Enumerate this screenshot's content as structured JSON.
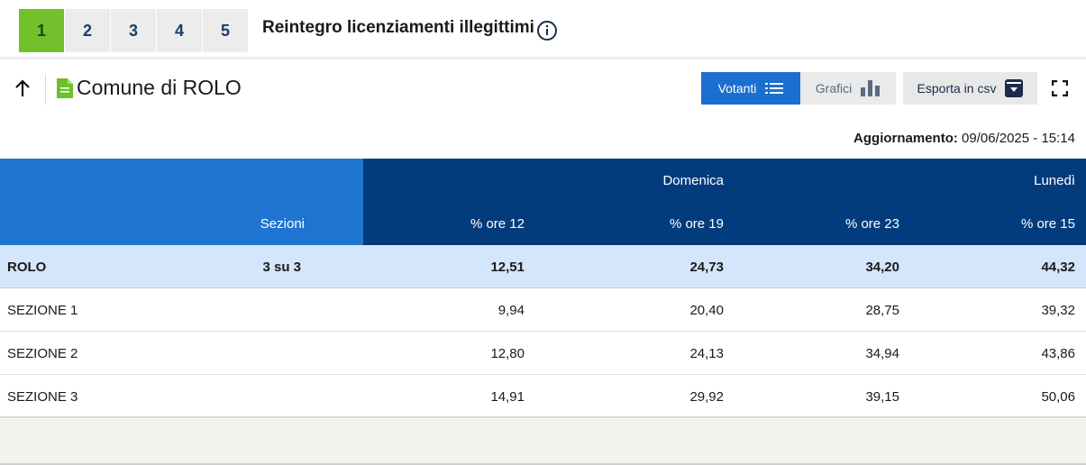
{
  "tabs": [
    "1",
    "2",
    "3",
    "4",
    "5"
  ],
  "active_tab": "1",
  "referendum_title": "Reintegro licenziamenti illegittimi",
  "header": {
    "comune_title": "Comune di ROLO",
    "votanti_label": "Votanti",
    "grafici_label": "Grafici",
    "csv_label": "Esporta in csv"
  },
  "update": {
    "label": "Aggiornamento:",
    "value": "09/06/2025 - 15:14"
  },
  "table": {
    "day_headers": {
      "domenica": "Domenica",
      "lunedi": "Lunedì"
    },
    "columns": {
      "sezioni": "Sezioni",
      "ore12": "% ore 12",
      "ore19": "% ore 19",
      "ore23": "% ore 23",
      "ore15": "% ore 15"
    },
    "total_row": {
      "name": "ROLO",
      "sezioni": "3 su 3",
      "ore12": "12,51",
      "ore19": "24,73",
      "ore23": "34,20",
      "ore15": "44,32"
    },
    "rows": [
      {
        "name": "SEZIONE 1",
        "ore12": "9,94",
        "ore19": "20,40",
        "ore23": "28,75",
        "ore15": "39,32"
      },
      {
        "name": "SEZIONE 2",
        "ore12": "12,80",
        "ore19": "24,13",
        "ore23": "34,94",
        "ore15": "43,86"
      },
      {
        "name": "SEZIONE 3",
        "ore12": "14,91",
        "ore19": "29,92",
        "ore23": "39,15",
        "ore15": "50,06"
      }
    ]
  },
  "colors": {
    "active_tab": "#72c02c",
    "primary_blue": "#1b6fd1",
    "table_header_dark": "#033c7d",
    "table_header_light": "#1f74d2",
    "total_row_bg": "#d4e6fb"
  },
  "icons": [
    "info-icon",
    "back-arrow-icon",
    "document-icon",
    "list-icon",
    "bar-chart-icon",
    "download-box-icon",
    "fullscreen-icon"
  ]
}
